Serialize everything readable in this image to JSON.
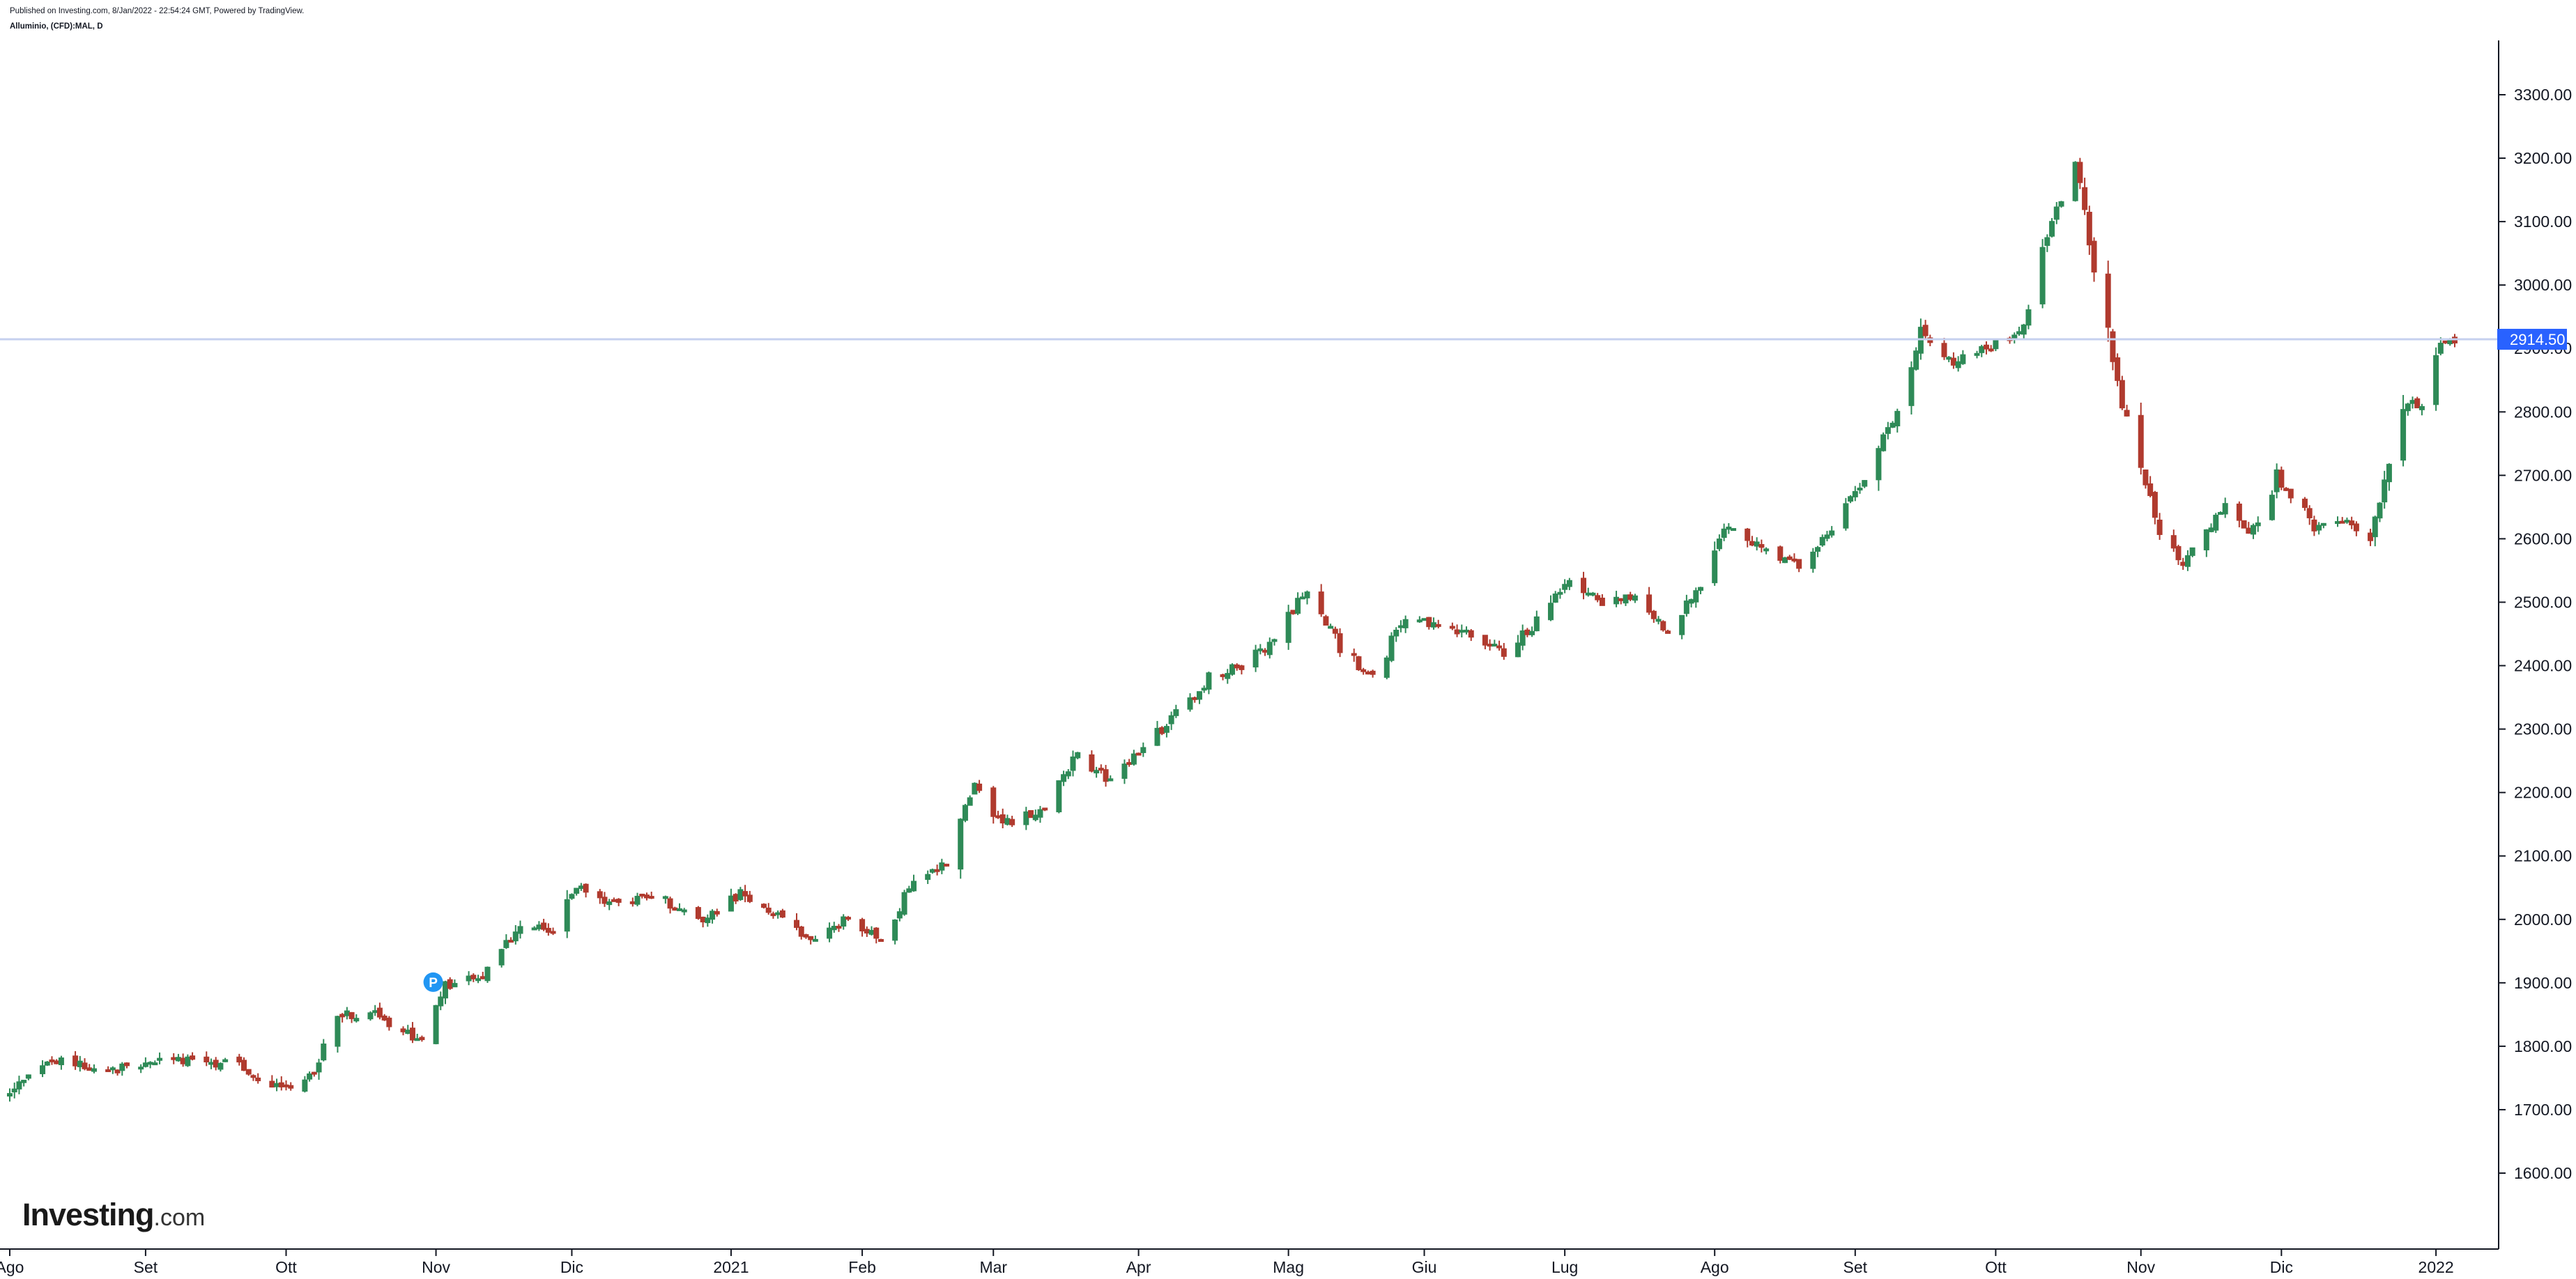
{
  "header": {
    "published_line": "Published on Investing.com, 8/Jan/2022 - 22:54:24 GMT, Powered by TradingView.",
    "symbol_title": "Alluminio, (CFD):MAL, D"
  },
  "logo": {
    "brand": "Investing",
    "suffix": ".com"
  },
  "colors": {
    "up": "#2e8a57",
    "down": "#b03a2e",
    "price_line": "#c6d0ef",
    "price_tag_bg": "#2962ff",
    "axis": "#131722",
    "marker": "#2196f3"
  },
  "chart_data": {
    "type": "candlestick",
    "title": "Alluminio, (CFD):MAL, D",
    "ylim": [
      1580,
      3390
    ],
    "y_ticks": [
      1600,
      1700,
      1800,
      1900,
      2000,
      2100,
      2200,
      2300,
      2400,
      2500,
      2600,
      2700,
      2800,
      2900,
      3000,
      3100,
      3200,
      3300
    ],
    "y_tick_labels": [
      "1600.00",
      "1700.00",
      "1800.00",
      "1900.00",
      "2000.00",
      "2100.00",
      "2200.00",
      "2300.00",
      "2400.00",
      "2500.00",
      "2600.00",
      "2700.00",
      "2800.00",
      "2900.00",
      "3000.00",
      "3100.00",
      "3200.00",
      "3300.00"
    ],
    "x_ticks": [
      {
        "label": "Ago",
        "date": "2020-08-03"
      },
      {
        "label": "Set",
        "date": "2020-09-01"
      },
      {
        "label": "Ott",
        "date": "2020-10-01"
      },
      {
        "label": "Nov",
        "date": "2020-11-02"
      },
      {
        "label": "Dic",
        "date": "2020-12-01"
      },
      {
        "label": "2021",
        "date": "2021-01-04"
      },
      {
        "label": "Feb",
        "date": "2021-02-01"
      },
      {
        "label": "Mar",
        "date": "2021-03-01"
      },
      {
        "label": "Apr",
        "date": "2021-04-01"
      },
      {
        "label": "Mag",
        "date": "2021-05-03"
      },
      {
        "label": "Giu",
        "date": "2021-06-01"
      },
      {
        "label": "Lug",
        "date": "2021-07-01"
      },
      {
        "label": "Ago",
        "date": "2021-08-02"
      },
      {
        "label": "Set",
        "date": "2021-09-01"
      },
      {
        "label": "Ott",
        "date": "2021-10-01"
      },
      {
        "label": "Nov",
        "date": "2021-11-01"
      },
      {
        "label": "Dic",
        "date": "2021-12-01"
      },
      {
        "label": "2022",
        "date": "2022-01-03"
      }
    ],
    "anchors": [
      {
        "date": "2020-08-03",
        "close": 1730
      },
      {
        "date": "2020-08-12",
        "close": 1780
      },
      {
        "date": "2020-08-24",
        "close": 1760
      },
      {
        "date": "2020-09-04",
        "close": 1780
      },
      {
        "date": "2020-09-21",
        "close": 1770
      },
      {
        "date": "2020-09-30",
        "close": 1730
      },
      {
        "date": "2020-10-07",
        "close": 1760
      },
      {
        "date": "2020-10-12",
        "close": 1850
      },
      {
        "date": "2020-10-20",
        "close": 1850
      },
      {
        "date": "2020-10-30",
        "close": 1805
      },
      {
        "date": "2020-11-04",
        "close": 1895
      },
      {
        "date": "2020-11-12",
        "close": 1910
      },
      {
        "date": "2020-11-20",
        "close": 1990
      },
      {
        "date": "2020-11-27",
        "close": 1980
      },
      {
        "date": "2020-12-02",
        "close": 2055
      },
      {
        "date": "2020-12-11",
        "close": 2020
      },
      {
        "date": "2020-12-18",
        "close": 2040
      },
      {
        "date": "2020-12-29",
        "close": 2000
      },
      {
        "date": "2021-01-06",
        "close": 2040
      },
      {
        "date": "2021-01-15",
        "close": 2000
      },
      {
        "date": "2021-01-22",
        "close": 1965
      },
      {
        "date": "2021-01-29",
        "close": 2005
      },
      {
        "date": "2021-02-05",
        "close": 1970
      },
      {
        "date": "2021-02-12",
        "close": 2060
      },
      {
        "date": "2021-02-19",
        "close": 2090
      },
      {
        "date": "2021-02-25",
        "close": 2220
      },
      {
        "date": "2021-03-03",
        "close": 2150
      },
      {
        "date": "2021-03-12",
        "close": 2170
      },
      {
        "date": "2021-03-19",
        "close": 2260
      },
      {
        "date": "2021-03-26",
        "close": 2220
      },
      {
        "date": "2021-04-06",
        "close": 2300
      },
      {
        "date": "2021-04-16",
        "close": 2380
      },
      {
        "date": "2021-04-23",
        "close": 2400
      },
      {
        "date": "2021-04-30",
        "close": 2440
      },
      {
        "date": "2021-05-07",
        "close": 2520
      },
      {
        "date": "2021-05-14",
        "close": 2430
      },
      {
        "date": "2021-05-21",
        "close": 2380
      },
      {
        "date": "2021-05-28",
        "close": 2480
      },
      {
        "date": "2021-06-04",
        "close": 2460
      },
      {
        "date": "2021-06-11",
        "close": 2450
      },
      {
        "date": "2021-06-18",
        "close": 2420
      },
      {
        "date": "2021-06-25",
        "close": 2470
      },
      {
        "date": "2021-07-02",
        "close": 2540
      },
      {
        "date": "2021-07-09",
        "close": 2500
      },
      {
        "date": "2021-07-16",
        "close": 2510
      },
      {
        "date": "2021-07-23",
        "close": 2450
      },
      {
        "date": "2021-07-30",
        "close": 2530
      },
      {
        "date": "2021-08-04",
        "close": 2620
      },
      {
        "date": "2021-08-13",
        "close": 2580
      },
      {
        "date": "2021-08-20",
        "close": 2560
      },
      {
        "date": "2021-08-27",
        "close": 2620
      },
      {
        "date": "2021-09-03",
        "close": 2700
      },
      {
        "date": "2021-09-10",
        "close": 2800
      },
      {
        "date": "2021-09-15",
        "close": 2930
      },
      {
        "date": "2021-09-22",
        "close": 2880
      },
      {
        "date": "2021-09-29",
        "close": 2900
      },
      {
        "date": "2021-10-06",
        "close": 2920
      },
      {
        "date": "2021-10-12",
        "close": 3080
      },
      {
        "date": "2021-10-18",
        "close": 3190
      },
      {
        "date": "2021-10-22",
        "close": 3020
      },
      {
        "date": "2021-10-27",
        "close": 2840
      },
      {
        "date": "2021-11-01",
        "close": 2720
      },
      {
        "date": "2021-11-05",
        "close": 2600
      },
      {
        "date": "2021-11-10",
        "close": 2560
      },
      {
        "date": "2021-11-19",
        "close": 2650
      },
      {
        "date": "2021-11-24",
        "close": 2600
      },
      {
        "date": "2021-11-30",
        "close": 2700
      },
      {
        "date": "2021-12-08",
        "close": 2620
      },
      {
        "date": "2021-12-15",
        "close": 2630
      },
      {
        "date": "2021-12-20",
        "close": 2600
      },
      {
        "date": "2021-12-23",
        "close": 2700
      },
      {
        "date": "2021-12-27",
        "close": 2820
      },
      {
        "date": "2021-12-31",
        "close": 2810
      },
      {
        "date": "2022-01-04",
        "close": 2900
      },
      {
        "date": "2022-01-07",
        "close": 2914.5
      }
    ],
    "last_price": 2914.5,
    "last_price_label": "2914.50",
    "marker": {
      "date": "2020-11-02",
      "label": "P",
      "price": 1890
    }
  }
}
